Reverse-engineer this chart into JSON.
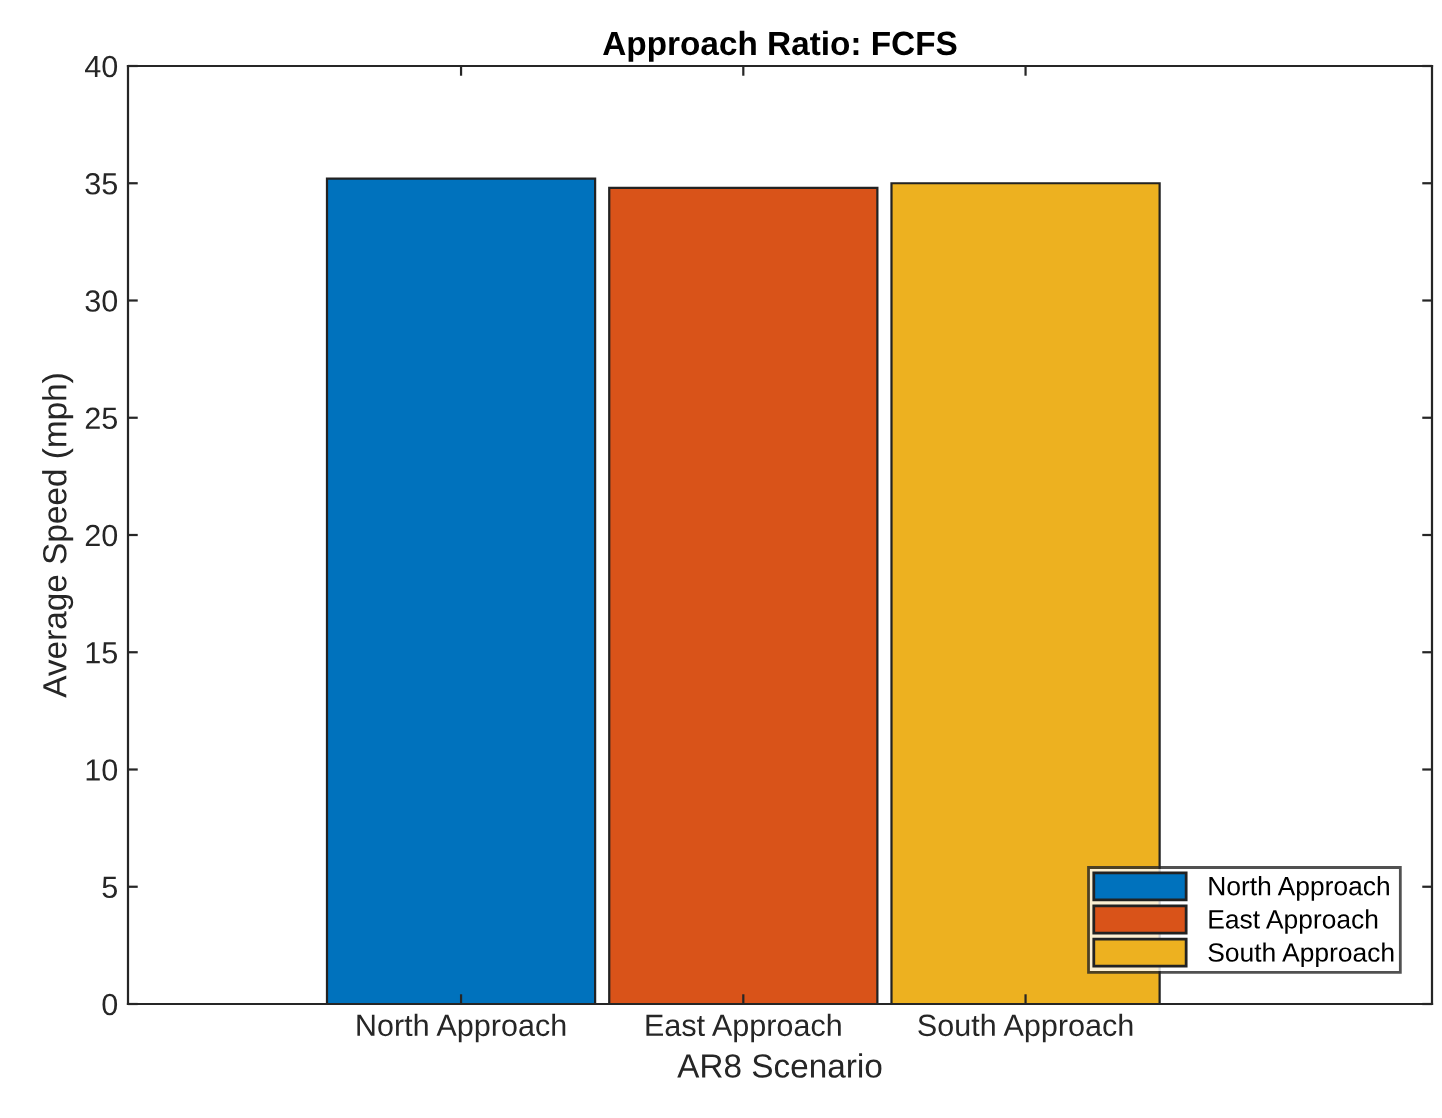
{
  "chart_data": {
    "type": "bar",
    "title": "Approach Ratio: FCFS",
    "xlabel": "AR8 Scenario",
    "ylabel": "Average Speed (mph)",
    "categories": [
      "North Approach",
      "East Approach",
      "South Approach"
    ],
    "series": [
      {
        "name": "North Approach",
        "color": "#0072bd",
        "values": [
          35.2,
          null,
          null
        ]
      },
      {
        "name": "East Approach",
        "color": "#d95319",
        "values": [
          null,
          34.8,
          null
        ]
      },
      {
        "name": "South Approach",
        "color": "#edb120",
        "values": [
          null,
          null,
          35.0
        ]
      }
    ],
    "ylim": [
      0,
      40
    ],
    "yticks": [
      0,
      5,
      10,
      15,
      20,
      25,
      30,
      35,
      40
    ],
    "grid": false,
    "legend": "bottom right"
  }
}
